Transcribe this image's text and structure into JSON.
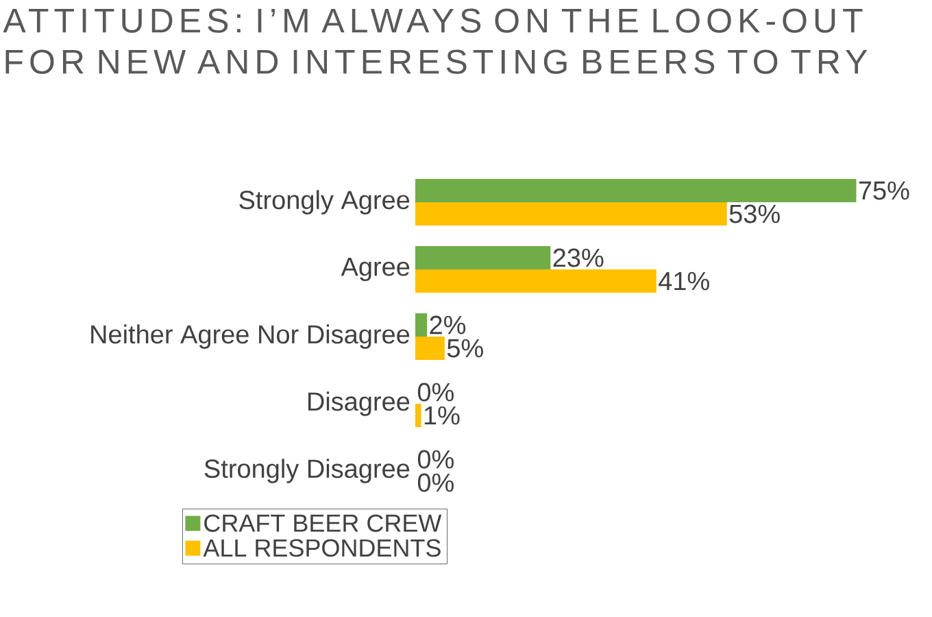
{
  "chart_data": {
    "type": "bar",
    "orientation": "horizontal",
    "title": "ATTITUDES: I’M ALWAYS ON THE LOOK-OUT FOR NEW AND INTERESTING BEERS TO TRY",
    "categories": [
      "Strongly Agree",
      "Agree",
      "Neither Agree Nor Disagree",
      "Disagree",
      "Strongly Disagree"
    ],
    "series": [
      {
        "name": "CRAFT BEER CREW",
        "color": "#70ad47",
        "values": [
          75,
          23,
          2,
          0,
          0
        ],
        "value_labels": [
          "75%",
          "23%",
          "2%",
          "0%",
          "0%"
        ]
      },
      {
        "name": "ALL RESPONDENTS",
        "color": "#ffc000",
        "values": [
          53,
          41,
          5,
          1,
          0
        ],
        "value_labels": [
          "53%",
          "41%",
          "5%",
          "1%",
          "0%"
        ]
      }
    ],
    "legend": "bottom"
  }
}
